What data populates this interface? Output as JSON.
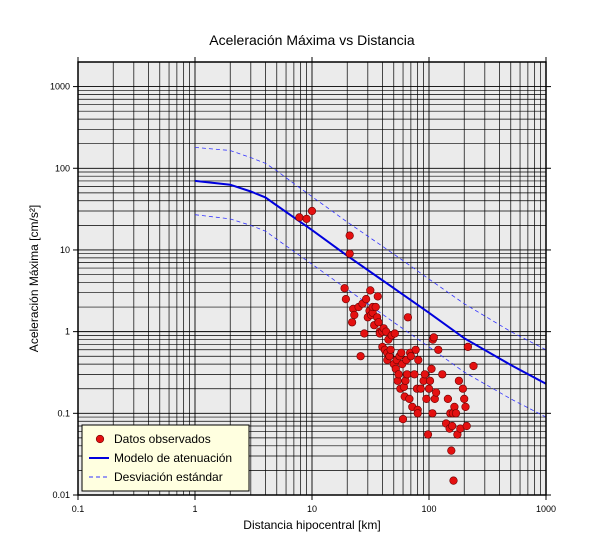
{
  "chart_data": {
    "type": "scatter",
    "title": "Aceleración Máxima vs Distancia",
    "xlabel": "Distancia hipocentral [km]",
    "ylabel": "Aceleración Máxima [cm/s²]",
    "x_scale": "log",
    "y_scale": "log",
    "xlim": [
      0.1,
      1000
    ],
    "ylim": [
      0.01,
      2000
    ],
    "x_ticks": [
      {
        "value": 0.1,
        "label": "0.1"
      },
      {
        "value": 1,
        "label": "1"
      },
      {
        "value": 10,
        "label": "10"
      },
      {
        "value": 100,
        "label": "100"
      },
      {
        "value": 1000,
        "label": "1000"
      }
    ],
    "y_ticks": [
      {
        "value": 0.01,
        "label": "0.01"
      },
      {
        "value": 0.1,
        "label": "0.1"
      },
      {
        "value": 1,
        "label": "1"
      },
      {
        "value": 10,
        "label": "10"
      },
      {
        "value": 100,
        "label": "100"
      },
      {
        "value": 1000,
        "label": "1000"
      }
    ],
    "grid": true,
    "legend_position": "bottom-left",
    "colors": {
      "plot_background": "#ebebeb",
      "grid": "#000000",
      "points": "#e41010",
      "point_edge": "#6a0000",
      "model_line": "#0000dd",
      "std_line": "#3333ff",
      "legend_background": "#ffffe0"
    },
    "series": [
      {
        "name": "Datos observados",
        "kind": "points",
        "x": [
          7.8,
          9,
          10,
          19,
          19.5,
          21,
          21,
          22,
          22.5,
          23,
          25,
          26,
          27,
          28,
          29,
          30,
          31,
          31.5,
          32,
          33,
          33,
          34,
          35,
          36,
          36.5,
          37,
          38,
          38,
          40,
          40,
          41,
          42,
          43,
          44,
          44,
          45,
          46,
          47,
          48,
          50,
          51,
          52,
          53,
          54,
          55,
          56,
          57,
          58,
          59,
          60,
          61,
          62,
          63,
          64,
          65,
          66,
          68,
          69,
          70,
          72,
          75,
          77,
          79,
          80,
          80,
          81,
          85,
          90,
          92,
          95,
          98,
          100,
          102,
          105,
          107,
          108,
          110,
          112,
          115,
          120,
          130,
          140,
          145,
          150,
          152,
          155,
          158,
          160,
          162,
          165,
          170,
          175,
          180,
          185,
          195,
          200,
          205,
          210,
          215,
          240
        ],
        "y": [
          25,
          24,
          30,
          3.4,
          2.5,
          15,
          9,
          1.3,
          1.9,
          1.6,
          2,
          0.5,
          2.2,
          0.95,
          2.5,
          1.5,
          1.8,
          3.2,
          1.6,
          1.7,
          2,
          1.2,
          2,
          1.5,
          2.7,
          1.3,
          1.0,
          0.95,
          0.65,
          1.0,
          1.1,
          0.6,
          1.0,
          0.45,
          0.55,
          0.8,
          0.5,
          0.6,
          0.9,
          0.4,
          0.95,
          0.35,
          0.45,
          0.25,
          0.3,
          0.5,
          0.2,
          0.55,
          0.4,
          0.085,
          0.21,
          0.16,
          0.25,
          0.45,
          0.3,
          1.5,
          0.15,
          0.55,
          0.5,
          0.12,
          0.3,
          0.6,
          0.2,
          0.11,
          0.1,
          0.45,
          0.2,
          0.25,
          0.3,
          0.15,
          0.055,
          0.2,
          0.25,
          0.35,
          0.1,
          0.8,
          0.85,
          0.15,
          0.18,
          0.6,
          0.3,
          0.075,
          0.15,
          0.065,
          0.1,
          0.035,
          0.07,
          0.1,
          0.015,
          0.12,
          0.1,
          0.055,
          0.25,
          0.065,
          0.2,
          0.15,
          0.12,
          0.07,
          0.65,
          0.38
        ]
      },
      {
        "name": "Modelo de atenuación",
        "kind": "line",
        "x": [
          1,
          2,
          3,
          4,
          5,
          7,
          10,
          20,
          50,
          100,
          200,
          500,
          1000
        ],
        "y": [
          70,
          63,
          52,
          44,
          35,
          25,
          17.5,
          8.5,
          3.4,
          1.7,
          0.83,
          0.39,
          0.23
        ]
      },
      {
        "name": "Desviación estándar",
        "kind": "line",
        "style": "dashed",
        "x": [
          1,
          2,
          3,
          4,
          5,
          7,
          10,
          20,
          50,
          100,
          200,
          500,
          1000
        ],
        "y": [
          180,
          165,
          135,
          115,
          93,
          65,
          45,
          22,
          8.9,
          4.4,
          2.2,
          1.0,
          0.6
        ]
      },
      {
        "name": "Desviación estándar (inferior)",
        "kind": "line",
        "style": "dashed",
        "legend": false,
        "x": [
          1,
          2,
          3,
          4,
          5,
          7,
          10,
          20,
          50,
          100,
          200,
          500,
          1000
        ],
        "y": [
          27,
          24,
          20,
          17,
          13.5,
          9.6,
          6.7,
          3.3,
          1.3,
          0.65,
          0.32,
          0.15,
          0.09
        ]
      }
    ]
  }
}
